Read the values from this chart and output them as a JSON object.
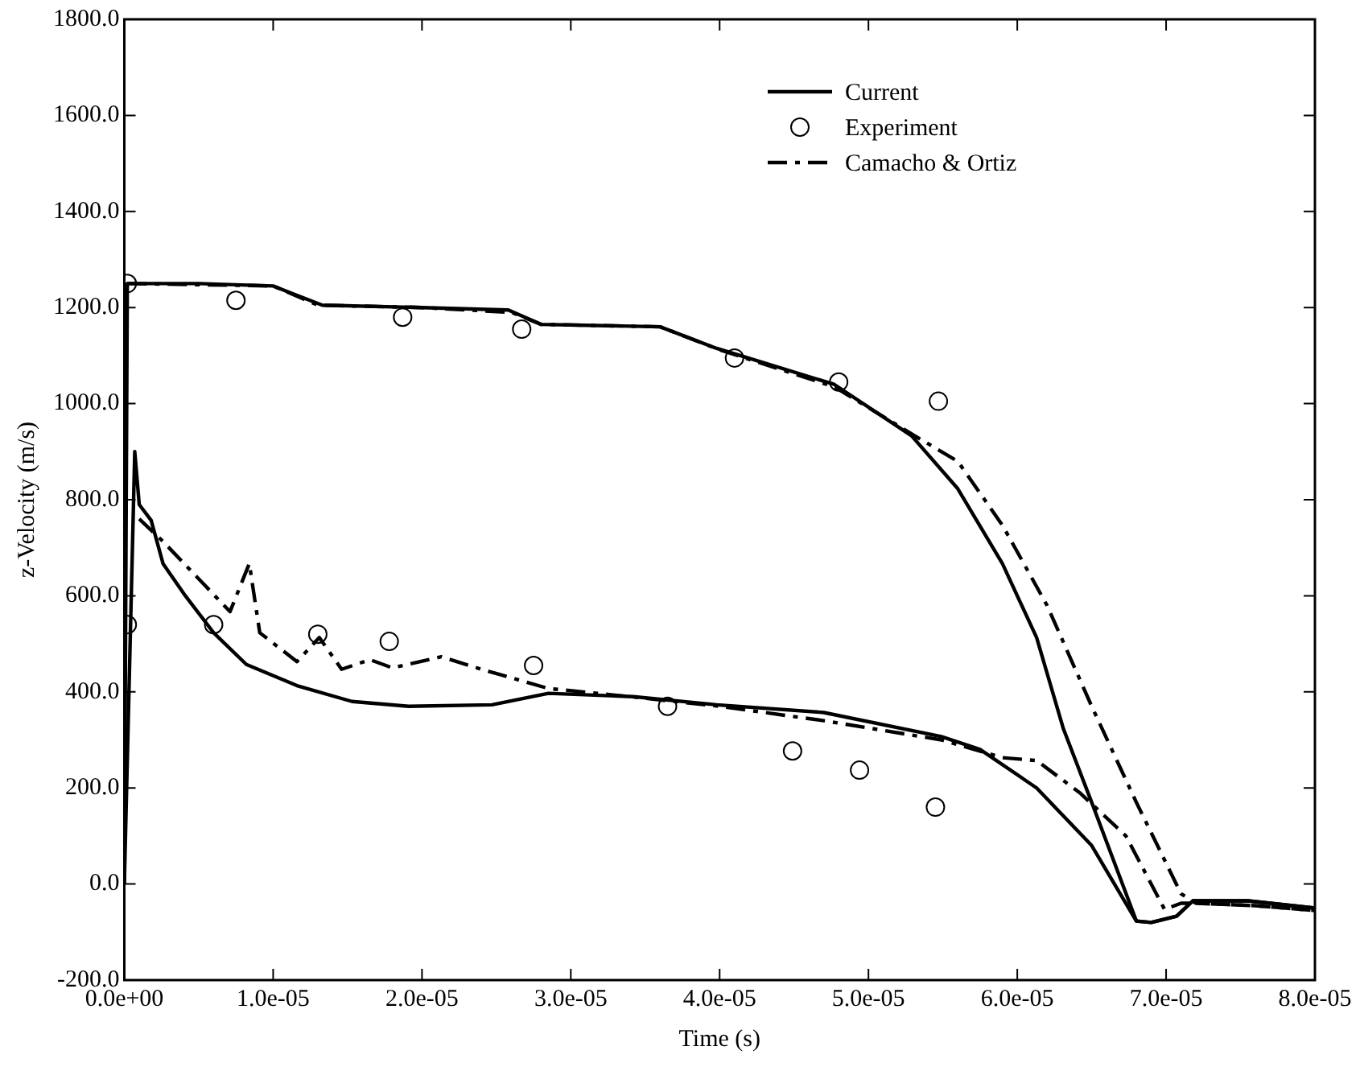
{
  "chart_data": {
    "type": "line",
    "xlabel": "Time (s)",
    "ylabel": "z-Velocity (m/s)",
    "xlim": [
      0,
      8e-05
    ],
    "ylim": [
      -200,
      1800
    ],
    "xticks": [
      {
        "value": 0,
        "label": "0.0e+00"
      },
      {
        "value": 1e-05,
        "label": "1.0e-05"
      },
      {
        "value": 2e-05,
        "label": "2.0e-05"
      },
      {
        "value": 3e-05,
        "label": "3.0e-05"
      },
      {
        "value": 4e-05,
        "label": "4.0e-05"
      },
      {
        "value": 5e-05,
        "label": "5.0e-05"
      },
      {
        "value": 6e-05,
        "label": "6.0e-05"
      },
      {
        "value": 7e-05,
        "label": "7.0e-05"
      },
      {
        "value": 8e-05,
        "label": "8.0e-05"
      }
    ],
    "yticks": [
      {
        "value": -200,
        "label": "-200.0"
      },
      {
        "value": 0,
        "label": "0.0"
      },
      {
        "value": 200,
        "label": "200.0"
      },
      {
        "value": 400,
        "label": "400.0"
      },
      {
        "value": 600,
        "label": "600.0"
      },
      {
        "value": 800,
        "label": "800.0"
      },
      {
        "value": 1000,
        "label": "1000.0"
      },
      {
        "value": 1200,
        "label": "1200.0"
      },
      {
        "value": 1400,
        "label": "1400.0"
      },
      {
        "value": 1600,
        "label": "1600.0"
      },
      {
        "value": 1800,
        "label": "1800.0"
      }
    ],
    "grid": false,
    "legend": "top right",
    "series": [
      {
        "name": "Current",
        "color": "#000000",
        "line_style": "solid",
        "marker": "none",
        "x": [
          0,
          2e-07,
          5e-06,
          1e-05,
          1.08e-05,
          1.33e-05,
          2e-05,
          2.58e-05,
          2.8e-05,
          3.6e-05,
          3.98e-05,
          4.17e-05,
          4.77e-05,
          5.29e-05,
          5.6e-05,
          5.9e-05,
          6.13e-05,
          6.31e-05,
          6.5e-05,
          6.8e-05,
          6.9e-05,
          7.07e-05,
          7.18e-05,
          7.55e-05,
          8e-05
        ],
        "values": [
          0,
          1250,
          1250,
          1245,
          1235,
          1205,
          1200,
          1195,
          1165,
          1160,
          1115,
          1097,
          1040,
          933,
          823,
          667,
          513,
          323,
          170,
          -77,
          -80,
          -67,
          -35,
          -35,
          -50
        ]
      },
      {
        "color": "#000000",
        "line_style": "solid",
        "marker": "none",
        "x": [
          0,
          7e-07,
          1e-06,
          1.8e-06,
          2.6e-06,
          4.1e-06,
          6e-06,
          8.2e-06,
          1.16e-05,
          1.53e-05,
          1.91e-05,
          2.47e-05,
          2.85e-05,
          3.42e-05,
          3.98e-05,
          4.7e-05,
          5.49e-05,
          5.75e-05,
          6.13e-05,
          6.5e-05,
          6.8e-05,
          6.9e-05,
          7.07e-05,
          7.18e-05,
          7.55e-05,
          8e-05
        ],
        "values": [
          0,
          900,
          790,
          757,
          667,
          600,
          523,
          457,
          413,
          380,
          370,
          373,
          397,
          390,
          373,
          357,
          307,
          280,
          200,
          80,
          -77,
          -80,
          -67,
          -35,
          -35,
          -50
        ]
      },
      {
        "name": "Experiment",
        "type": "scatter",
        "color": "#000000",
        "marker": "circle",
        "x": [
          2e-07,
          7.5e-06,
          1.87e-05,
          2.67e-05,
          4.1e-05,
          4.8e-05,
          5.47e-05,
          2e-07,
          6e-06,
          1.3e-05,
          1.78e-05,
          2.75e-05,
          3.65e-05,
          4.49e-05,
          4.94e-05,
          5.45e-05
        ],
        "values": [
          1250,
          1215,
          1180,
          1155,
          1095,
          1045,
          1005,
          540,
          540,
          520,
          505,
          455,
          370,
          277,
          237,
          160
        ]
      },
      {
        "name": "Camacho & Ortiz",
        "color": "#000000",
        "line_style": "dashed",
        "marker": "none",
        "x": [
          2e-07,
          1e-05,
          1.3e-05,
          2e-05,
          2.6e-05,
          2.8e-05,
          3.6e-05,
          4e-05,
          4.77e-05,
          5.3e-05,
          5.6e-05,
          5.9e-05,
          6.2e-05,
          6.5e-05,
          6.8e-05,
          7.1e-05,
          7.2e-05,
          7.6e-05,
          8e-05
        ],
        "values": [
          1250,
          1245,
          1205,
          1200,
          1190,
          1165,
          1160,
          1112,
          1035,
          935,
          880,
          747,
          580,
          370,
          170,
          -20,
          -40,
          -45,
          -55
        ]
      },
      {
        "color": "#000000",
        "line_style": "dashed",
        "marker": "none",
        "x": [
          1e-06,
          2.6e-06,
          7.1e-06,
          8.4e-06,
          9.1e-06,
          1.16e-05,
          1.31e-05,
          1.46e-05,
          1.65e-05,
          1.8e-05,
          2.13e-05,
          2.4e-05,
          2.85e-05,
          3.4e-05,
          4e-05,
          4.7e-05,
          5.49e-05,
          5.9e-05,
          6.13e-05,
          6.42e-05,
          6.73e-05,
          6.99e-05,
          7.1e-05,
          7.2e-05,
          7.6e-05,
          8e-05
        ],
        "values": [
          760,
          713,
          567,
          667,
          523,
          463,
          513,
          447,
          467,
          450,
          473,
          447,
          407,
          390,
          370,
          340,
          300,
          263,
          257,
          190,
          100,
          -53,
          -40,
          -40,
          -45,
          -55
        ]
      }
    ]
  }
}
